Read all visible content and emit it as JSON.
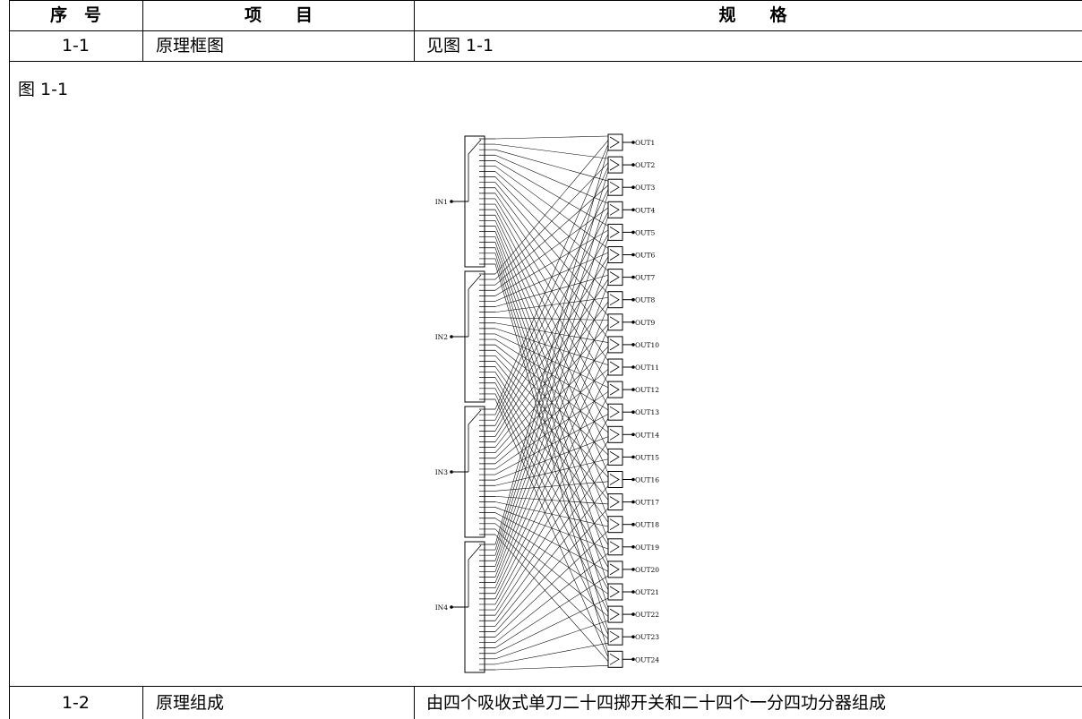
{
  "table": {
    "header": {
      "seq": "序　号",
      "item": "项　　目",
      "spec": "规　　格"
    },
    "rows": [
      {
        "seq": "1-1",
        "item": "原理框图",
        "spec": "见图 1-1"
      },
      {
        "seq": "1-2",
        "item": "原理组成",
        "spec": "由四个吸收式单刀二十四掷开关和二十四个一分四功分器组成"
      }
    ],
    "figure_caption": "图 1-1"
  },
  "diagram": {
    "inputs": [
      "IN1",
      "IN2",
      "IN3",
      "IN4"
    ],
    "outputs": [
      "OUT1",
      "OUT2",
      "OUT3",
      "OUT4",
      "OUT5",
      "OUT6",
      "OUT7",
      "OUT8",
      "OUT9",
      "OUT10",
      "OUT11",
      "OUT12",
      "OUT13",
      "OUT14",
      "OUT15",
      "OUT16",
      "OUT17",
      "OUT18",
      "OUT19",
      "OUT20",
      "OUT21",
      "OUT22",
      "OUT23",
      "OUT24"
    ],
    "switch_throws": 24,
    "divider_ports": 4
  }
}
